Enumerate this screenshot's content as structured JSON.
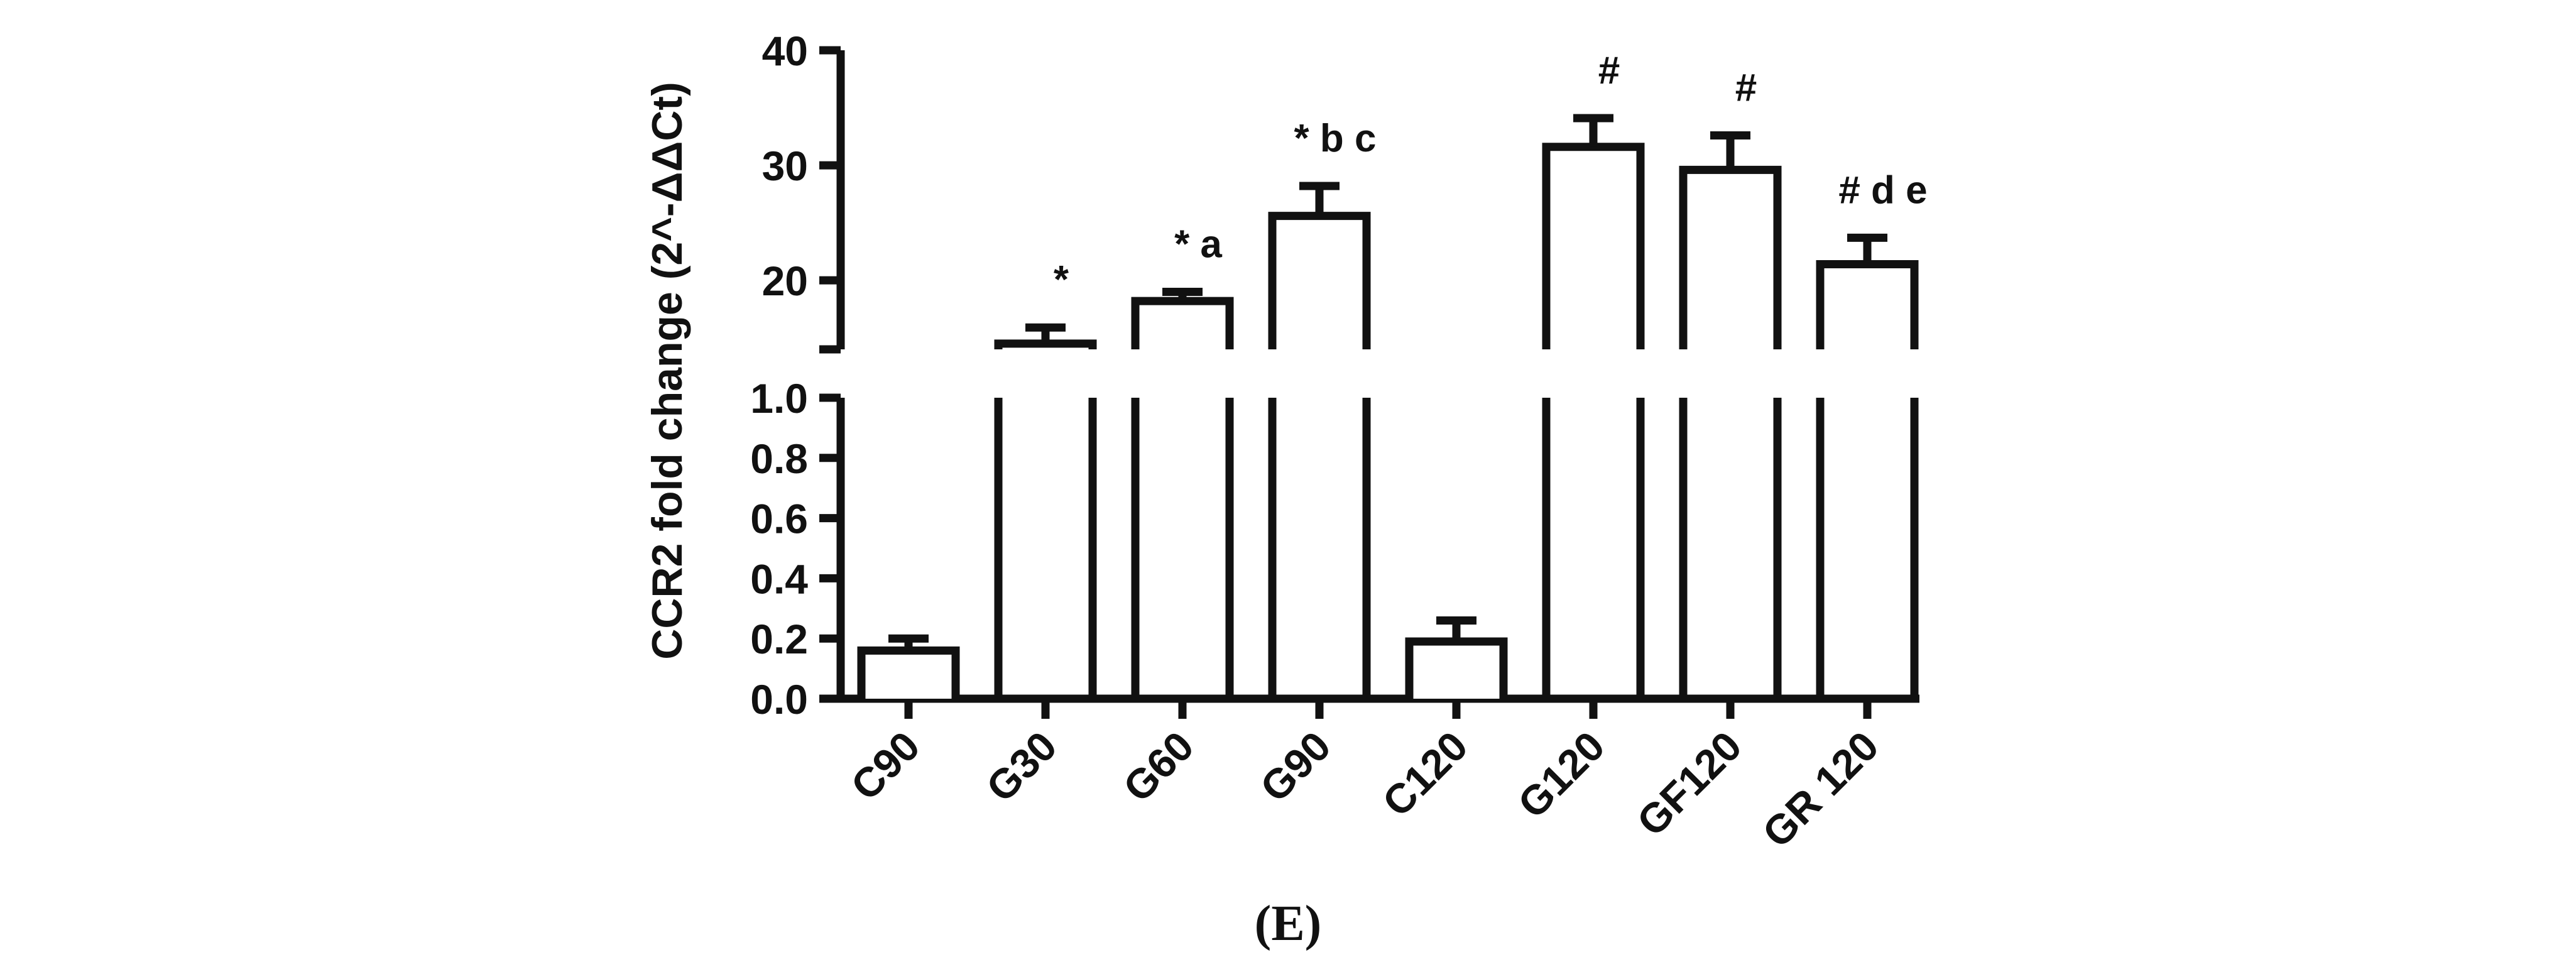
{
  "panel_label": "(E)",
  "chart_data": {
    "type": "bar",
    "title": "",
    "xlabel": "",
    "ylabel": "CCR2 fold change (2^-ΔΔCt)",
    "categories": [
      "C90",
      "G30",
      "G60",
      "G90",
      "C120",
      "G120",
      "GF120",
      "GR 120"
    ],
    "values": [
      0.16,
      14.5,
      18.2,
      25.6,
      0.19,
      31.6,
      29.6,
      21.4
    ],
    "errors": [
      0.04,
      1.4,
      0.8,
      2.6,
      0.07,
      2.5,
      3.0,
      2.3
    ],
    "annotations": [
      "",
      "*",
      "* a",
      "* b c",
      "",
      "#",
      "#",
      "# d e"
    ],
    "y_axis_broken": true,
    "ylim_lower": [
      0.0,
      1.0
    ],
    "ylim_upper": [
      14,
      40
    ],
    "yticks_lower": [
      "0.0",
      "0.2",
      "0.4",
      "0.6",
      "0.8",
      "1.0"
    ],
    "yticks_upper": [
      "20",
      "30",
      "40"
    ],
    "grid": false,
    "legend": "none",
    "bar_fill": "#ffffff",
    "bar_stroke": "#111111"
  }
}
